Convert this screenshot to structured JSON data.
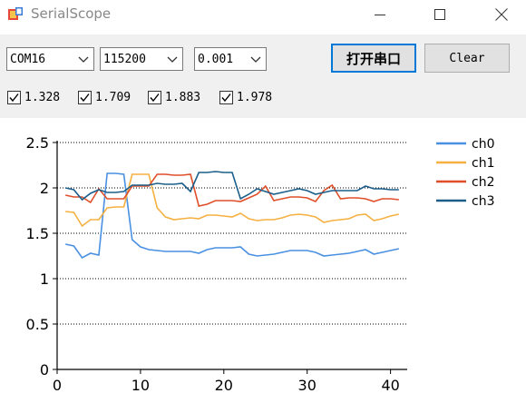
{
  "window": {
    "title": "SerialScope",
    "icon": "serialscope-app-icon",
    "minimize_icon": "minimize-icon",
    "maximize_icon": "maximize-icon",
    "close_icon": "close-icon"
  },
  "toolbar": {
    "port_select": "COM16",
    "baud_select": "115200",
    "interval_select": "0.001",
    "open_button": "打开串口",
    "clear_button": "Clear",
    "accent": "#0078d7"
  },
  "readouts": [
    {
      "label": "1.328",
      "checked": true
    },
    {
      "label": "1.709",
      "checked": true
    },
    {
      "label": "1.883",
      "checked": true
    },
    {
      "label": "1.978",
      "checked": true
    }
  ],
  "chart_data": {
    "type": "line",
    "xlim": [
      0,
      42
    ],
    "ylim": [
      0,
      2.5
    ],
    "x_ticks": [
      "0",
      "10",
      "20",
      "30",
      "40"
    ],
    "y_ticks": [
      "0",
      "0.5",
      "1",
      "1.5",
      "2",
      "2.5"
    ],
    "grid": "horizontal-dotted",
    "legend_position": "top-right",
    "x": [
      1,
      2,
      3,
      4,
      5,
      6,
      7,
      8,
      9,
      10,
      11,
      12,
      13,
      14,
      15,
      16,
      17,
      18,
      19,
      20,
      21,
      22,
      23,
      24,
      25,
      26,
      27,
      28,
      29,
      30,
      31,
      32,
      33,
      34,
      35,
      36,
      37,
      38,
      39,
      40,
      41
    ],
    "series": [
      {
        "name": "ch0",
        "color": "#4a90e2",
        "values": [
          1.38,
          1.36,
          1.23,
          1.28,
          1.26,
          2.16,
          2.16,
          2.15,
          1.43,
          1.35,
          1.32,
          1.31,
          1.3,
          1.3,
          1.3,
          1.3,
          1.28,
          1.32,
          1.34,
          1.34,
          1.34,
          1.35,
          1.27,
          1.25,
          1.26,
          1.27,
          1.29,
          1.31,
          1.31,
          1.31,
          1.29,
          1.25,
          1.26,
          1.27,
          1.28,
          1.3,
          1.32,
          1.27,
          1.29,
          1.31,
          1.33
        ]
      },
      {
        "name": "ch1",
        "color": "#f5b041",
        "values": [
          1.74,
          1.73,
          1.58,
          1.65,
          1.65,
          1.78,
          1.79,
          1.79,
          2.15,
          2.15,
          2.15,
          1.78,
          1.68,
          1.65,
          1.66,
          1.67,
          1.66,
          1.7,
          1.7,
          1.69,
          1.68,
          1.72,
          1.66,
          1.64,
          1.65,
          1.65,
          1.67,
          1.7,
          1.71,
          1.7,
          1.68,
          1.62,
          1.64,
          1.65,
          1.66,
          1.7,
          1.71,
          1.64,
          1.66,
          1.69,
          1.71
        ]
      },
      {
        "name": "ch2",
        "color": "#e04e2a",
        "values": [
          1.92,
          1.9,
          1.9,
          1.84,
          1.99,
          1.88,
          1.88,
          1.88,
          2.02,
          2.02,
          2.02,
          2.15,
          2.15,
          2.14,
          2.14,
          2.15,
          1.8,
          1.82,
          1.86,
          1.86,
          1.86,
          1.85,
          1.89,
          1.93,
          2.02,
          1.86,
          1.88,
          1.9,
          1.9,
          1.89,
          1.85,
          1.97,
          2.03,
          1.88,
          1.89,
          1.89,
          1.88,
          1.85,
          1.88,
          1.88,
          1.87
        ]
      },
      {
        "name": "ch3",
        "color": "#1b5e8a",
        "values": [
          2.0,
          1.98,
          1.87,
          1.94,
          1.98,
          1.95,
          1.95,
          1.96,
          2.03,
          2.03,
          2.03,
          2.05,
          2.04,
          2.04,
          2.05,
          1.96,
          2.17,
          2.17,
          2.18,
          2.17,
          2.17,
          1.88,
          1.93,
          1.99,
          1.96,
          1.93,
          1.95,
          1.97,
          1.99,
          1.97,
          1.93,
          1.95,
          1.97,
          1.97,
          1.97,
          1.97,
          2.02,
          1.99,
          1.99,
          1.98,
          1.98
        ]
      }
    ]
  }
}
